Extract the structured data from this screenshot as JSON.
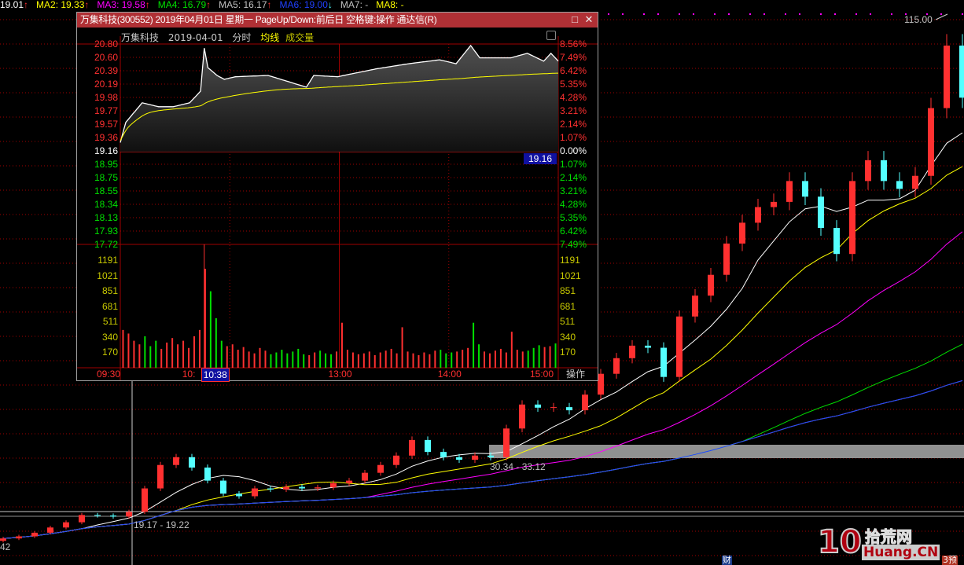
{
  "ma_bar": [
    {
      "label": "19.01",
      "arrow": "↑",
      "color": "#ffffff"
    },
    {
      "label": "MA2: 19.33",
      "arrow": "↑",
      "color": "#ffff00"
    },
    {
      "label": "MA3: 19.58",
      "arrow": "↑",
      "color": "#ff00ff"
    },
    {
      "label": "MA4: 16.79",
      "arrow": "↑",
      "color": "#00e000"
    },
    {
      "label": "MA5: 16.17",
      "arrow": "↑",
      "color": "#c0c0c0"
    },
    {
      "label": "MA6: 19.00",
      "arrow": "↓",
      "color": "#2040ff"
    },
    {
      "label": "MA7: -",
      "arrow": "",
      "color": "#c0c0c0"
    },
    {
      "label": "MA8: -",
      "arrow": "",
      "color": "#ffff00"
    }
  ],
  "main_chart": {
    "type": "candlestick",
    "closes": [
      15.4,
      15.8,
      16.5,
      17.5,
      18.5,
      19.9,
      19.8,
      19.6,
      20.5,
      25,
      29.5,
      31,
      29,
      26.5,
      24,
      23.5,
      25,
      24.8,
      25.3,
      25,
      25.2,
      26,
      26.5,
      28,
      29.5,
      31.3,
      34.3,
      32,
      31,
      30.5,
      31.3,
      31,
      36.5,
      41.1,
      40.5,
      40.6,
      40,
      43,
      47,
      50,
      52.4,
      52,
      46.4,
      58,
      62,
      66,
      72,
      76,
      79,
      80,
      84,
      81,
      75,
      70,
      84,
      88,
      84,
      82.5,
      85,
      98,
      110,
      100
    ],
    "high_label": "115.00",
    "low_label": "42",
    "range_labels": [
      "19.17 - 19.22",
      "30.34 - 33.12"
    ],
    "ma_colors": [
      "#ffffff",
      "#ffff00",
      "#ff00ff",
      "#00e000",
      "#c0c0c0",
      "#2040ff"
    ],
    "up_color": "#ff3030",
    "down_color": "#54ffff"
  },
  "popup": {
    "title": "万集科技(300552) 2019年04月01日 星期一 PageUp/Down:前后日 空格键:操作 通达信(R)",
    "maximize_icon": "□",
    "close_icon": "✕",
    "subtitle": {
      "name": "万集科技",
      "date": "2019-04-01",
      "mode": "分时",
      "avg": "均线",
      "vol": "成交量"
    },
    "prev_close": 19.16,
    "price_ticks": [
      "20.80",
      "20.60",
      "20.39",
      "20.19",
      "19.98",
      "19.77",
      "19.57",
      "19.36",
      "19.16",
      "18.95",
      "18.75",
      "18.55",
      "18.34",
      "18.13",
      "17.93",
      "17.72"
    ],
    "pct_ticks": [
      "8.56%",
      "7.49%",
      "6.42%",
      "5.35%",
      "4.28%",
      "3.21%",
      "2.14%",
      "1.07%",
      "0.00%",
      "1.07%",
      "2.14%",
      "3.21%",
      "4.28%",
      "5.35%",
      "6.42%",
      "7.49%"
    ],
    "current_price": "19.16",
    "vol_ticks": [
      "1191",
      "1021",
      "851",
      "681",
      "511",
      "340",
      "170"
    ],
    "time_ticks": [
      "09:30",
      "10:",
      "13:00",
      "14:00",
      "15:00"
    ],
    "cursor_time": "10:38",
    "action_label": "操作",
    "price_points": [
      [
        0,
        19.3
      ],
      [
        3,
        19.61
      ],
      [
        12,
        19.91
      ],
      [
        21,
        19.85
      ],
      [
        29,
        19.85
      ],
      [
        38,
        19.91
      ],
      [
        44,
        20.09
      ],
      [
        46,
        20.75
      ],
      [
        48,
        20.45
      ],
      [
        53,
        20.33
      ],
      [
        57,
        20.27
      ],
      [
        63,
        20.31
      ],
      [
        81,
        20.33
      ],
      [
        102,
        20.15
      ],
      [
        106,
        20.33
      ],
      [
        119,
        20.31
      ],
      [
        140,
        20.43
      ],
      [
        158,
        20.51
      ],
      [
        175,
        20.57
      ],
      [
        184,
        20.51
      ],
      [
        192,
        20.79
      ],
      [
        197,
        20.6
      ],
      [
        214,
        20.6
      ],
      [
        223,
        20.67
      ],
      [
        232,
        20.55
      ],
      [
        236,
        20.67
      ],
      [
        240,
        20.55
      ]
    ],
    "volumes": [
      420,
      380,
      300,
      260,
      350,
      240,
      300,
      210,
      280,
      330,
      260,
      300,
      220,
      350,
      420,
      1100,
      850,
      550,
      300,
      240,
      260,
      200,
      230,
      180,
      160,
      220,
      190,
      150,
      170,
      200,
      160,
      180,
      210,
      150,
      140,
      170,
      190,
      160,
      150,
      180,
      500,
      200,
      170,
      150,
      160,
      180,
      140,
      170,
      190,
      210,
      160,
      450,
      180,
      160,
      140,
      170,
      150,
      190,
      200,
      160,
      170,
      180,
      200,
      220,
      500,
      260,
      180,
      160,
      190,
      210,
      170,
      400,
      200,
      180,
      190,
      220,
      250,
      230,
      240,
      270
    ]
  },
  "logo": {
    "number": "10",
    "name": "拾荒网",
    "domain": "Huang.CN"
  },
  "badges": {
    "finance": "财",
    "forecast": "3预"
  }
}
